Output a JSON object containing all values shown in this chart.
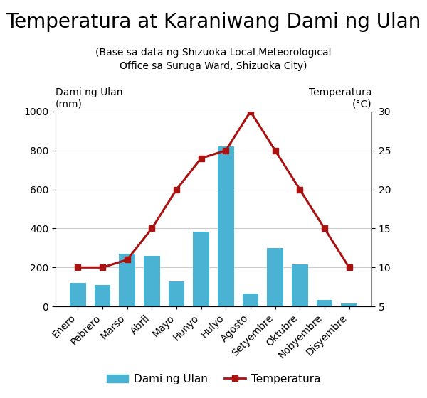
{
  "title": "Temperatura at Karaniwang Dami ng Ulan",
  "subtitle": "(Base sa data ng Shizuoka Local Meteorological\nOffice sa Suruga Ward, Shizuoka City)",
  "months": [
    "Enero",
    "Pebrero",
    "Marso",
    "Abril",
    "Mayo",
    "Hunyo",
    "Hulyo",
    "Agosto",
    "Setyembre",
    "Oktubre",
    "Nobyembre",
    "Disyembre"
  ],
  "rainfall": [
    120,
    110,
    270,
    260,
    130,
    385,
    820,
    65,
    300,
    215,
    35,
    15
  ],
  "temperature": [
    10,
    10,
    11,
    15,
    20,
    24,
    25,
    30,
    25,
    20,
    15,
    10
  ],
  "bar_color": "#4ab3d4",
  "line_color": "#aa1111",
  "left_ylabel1": "Dami ng Ulan",
  "left_ylabel2": "(mm)",
  "right_ylabel1": "Temperatura",
  "right_ylabel2": "(°C)",
  "ylim_left": [
    0,
    1000
  ],
  "ylim_right": [
    5,
    30
  ],
  "yticks_left": [
    0,
    200,
    400,
    600,
    800,
    1000
  ],
  "yticks_right": [
    5,
    10,
    15,
    20,
    25,
    30
  ],
  "legend_rain": "Dami ng Ulan",
  "legend_temp": "Temperatura",
  "background_color": "#ffffff",
  "grid_color": "#cccccc",
  "title_fontsize": 20,
  "subtitle_fontsize": 10,
  "tick_fontsize": 10,
  "label_fontsize": 10
}
